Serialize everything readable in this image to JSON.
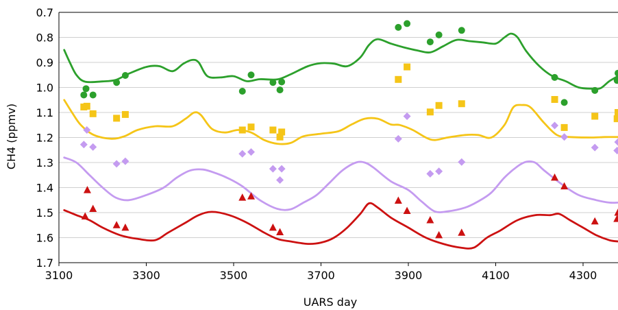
{
  "chart_data": {
    "type": "scatter",
    "xlabel": "UARS day",
    "ylabel": "CH4 (ppmv)",
    "xlim": [
      3100,
      4380
    ],
    "ylim": [
      0.7,
      1.7
    ],
    "y_inverted": true,
    "x_ticks": [
      3100,
      3300,
      3500,
      3700,
      3900,
      4100,
      4300
    ],
    "y_ticks": [
      "0.7",
      "0.8",
      "0.9",
      "1.0",
      "1.1",
      "1.2",
      "1.3",
      "1.4",
      "1.5",
      "1.6",
      "1.7"
    ],
    "grid": "horizontal",
    "series": [
      {
        "color": "#2ca02c",
        "marker": "circle",
        "points": [
          [
            3157,
            1.03
          ],
          [
            3162,
            1.005
          ],
          [
            3178,
            1.03
          ],
          [
            3232,
            0.98
          ],
          [
            3252,
            0.952
          ],
          [
            3520,
            1.015
          ],
          [
            3540,
            0.95
          ],
          [
            3590,
            0.98
          ],
          [
            3606,
            1.01
          ],
          [
            3610,
            0.978
          ],
          [
            3877,
            0.76
          ],
          [
            3897,
            0.745
          ],
          [
            3950,
            0.818
          ],
          [
            3970,
            0.79
          ],
          [
            4022,
            0.772
          ],
          [
            4235,
            0.96
          ],
          [
            4257,
            1.06
          ],
          [
            4327,
            1.012
          ],
          [
            4378,
            0.972
          ],
          [
            4380,
            0.943
          ]
        ],
        "line": [
          [
            3112,
            0.85
          ],
          [
            3125,
            0.9
          ],
          [
            3140,
            0.95
          ],
          [
            3160,
            0.977
          ],
          [
            3200,
            0.976
          ],
          [
            3230,
            0.97
          ],
          [
            3260,
            0.945
          ],
          [
            3300,
            0.918
          ],
          [
            3330,
            0.915
          ],
          [
            3360,
            0.935
          ],
          [
            3385,
            0.905
          ],
          [
            3405,
            0.89
          ],
          [
            3420,
            0.9
          ],
          [
            3440,
            0.955
          ],
          [
            3470,
            0.96
          ],
          [
            3500,
            0.955
          ],
          [
            3530,
            0.975
          ],
          [
            3560,
            0.967
          ],
          [
            3600,
            0.968
          ],
          [
            3630,
            0.948
          ],
          [
            3670,
            0.915
          ],
          [
            3700,
            0.903
          ],
          [
            3730,
            0.905
          ],
          [
            3760,
            0.915
          ],
          [
            3790,
            0.88
          ],
          [
            3810,
            0.83
          ],
          [
            3830,
            0.807
          ],
          [
            3860,
            0.825
          ],
          [
            3890,
            0.84
          ],
          [
            3920,
            0.852
          ],
          [
            3950,
            0.86
          ],
          [
            3980,
            0.835
          ],
          [
            4010,
            0.81
          ],
          [
            4040,
            0.815
          ],
          [
            4070,
            0.82
          ],
          [
            4100,
            0.825
          ],
          [
            4120,
            0.8
          ],
          [
            4135,
            0.785
          ],
          [
            4150,
            0.8
          ],
          [
            4170,
            0.855
          ],
          [
            4200,
            0.915
          ],
          [
            4230,
            0.955
          ],
          [
            4260,
            0.975
          ],
          [
            4290,
            1.0
          ],
          [
            4320,
            1.005
          ],
          [
            4340,
            1.003
          ],
          [
            4360,
            0.975
          ],
          [
            4380,
            0.955
          ]
        ]
      },
      {
        "color": "#f5c518",
        "marker": "square",
        "points": [
          [
            3157,
            1.078
          ],
          [
            3164,
            1.075
          ],
          [
            3178,
            1.105
          ],
          [
            3232,
            1.123
          ],
          [
            3252,
            1.108
          ],
          [
            3520,
            1.17
          ],
          [
            3540,
            1.158
          ],
          [
            3590,
            1.17
          ],
          [
            3606,
            1.198
          ],
          [
            3610,
            1.178
          ],
          [
            3877,
            0.968
          ],
          [
            3897,
            0.918
          ],
          [
            3950,
            1.098
          ],
          [
            3970,
            1.072
          ],
          [
            4022,
            1.065
          ],
          [
            4235,
            1.048
          ],
          [
            4257,
            1.16
          ],
          [
            4327,
            1.115
          ],
          [
            4378,
            1.125
          ],
          [
            4380,
            1.1
          ]
        ],
        "line": [
          [
            3112,
            1.05
          ],
          [
            3130,
            1.1
          ],
          [
            3150,
            1.15
          ],
          [
            3180,
            1.19
          ],
          [
            3220,
            1.205
          ],
          [
            3250,
            1.195
          ],
          [
            3280,
            1.17
          ],
          [
            3320,
            1.155
          ],
          [
            3360,
            1.155
          ],
          [
            3390,
            1.125
          ],
          [
            3410,
            1.1
          ],
          [
            3425,
            1.11
          ],
          [
            3450,
            1.165
          ],
          [
            3480,
            1.18
          ],
          [
            3510,
            1.17
          ],
          [
            3540,
            1.18
          ],
          [
            3570,
            1.21
          ],
          [
            3600,
            1.225
          ],
          [
            3630,
            1.222
          ],
          [
            3660,
            1.195
          ],
          [
            3700,
            1.185
          ],
          [
            3740,
            1.175
          ],
          [
            3770,
            1.148
          ],
          [
            3800,
            1.125
          ],
          [
            3830,
            1.125
          ],
          [
            3860,
            1.148
          ],
          [
            3880,
            1.15
          ],
          [
            3910,
            1.17
          ],
          [
            3940,
            1.2
          ],
          [
            3960,
            1.21
          ],
          [
            3990,
            1.2
          ],
          [
            4030,
            1.19
          ],
          [
            4060,
            1.19
          ],
          [
            4090,
            1.2
          ],
          [
            4120,
            1.15
          ],
          [
            4140,
            1.08
          ],
          [
            4160,
            1.07
          ],
          [
            4180,
            1.08
          ],
          [
            4210,
            1.14
          ],
          [
            4240,
            1.19
          ],
          [
            4270,
            1.198
          ],
          [
            4320,
            1.2
          ],
          [
            4350,
            1.198
          ],
          [
            4380,
            1.198
          ]
        ]
      },
      {
        "color": "#c49bf0",
        "marker": "diamond",
        "points": [
          [
            3157,
            1.228
          ],
          [
            3164,
            1.17
          ],
          [
            3178,
            1.238
          ],
          [
            3232,
            1.305
          ],
          [
            3252,
            1.295
          ],
          [
            3520,
            1.265
          ],
          [
            3540,
            1.258
          ],
          [
            3590,
            1.325
          ],
          [
            3606,
            1.37
          ],
          [
            3610,
            1.325
          ],
          [
            3877,
            1.205
          ],
          [
            3897,
            1.115
          ],
          [
            3950,
            1.345
          ],
          [
            3970,
            1.335
          ],
          [
            4022,
            1.298
          ],
          [
            4235,
            1.152
          ],
          [
            4257,
            1.198
          ],
          [
            4327,
            1.24
          ],
          [
            4378,
            1.252
          ],
          [
            4380,
            1.218
          ]
        ],
        "line": [
          [
            3112,
            1.28
          ],
          [
            3140,
            1.3
          ],
          [
            3170,
            1.35
          ],
          [
            3200,
            1.4
          ],
          [
            3230,
            1.44
          ],
          [
            3260,
            1.45
          ],
          [
            3300,
            1.43
          ],
          [
            3340,
            1.4
          ],
          [
            3370,
            1.36
          ],
          [
            3400,
            1.332
          ],
          [
            3430,
            1.328
          ],
          [
            3460,
            1.343
          ],
          [
            3490,
            1.365
          ],
          [
            3520,
            1.395
          ],
          [
            3560,
            1.45
          ],
          [
            3600,
            1.485
          ],
          [
            3630,
            1.487
          ],
          [
            3660,
            1.46
          ],
          [
            3690,
            1.43
          ],
          [
            3720,
            1.38
          ],
          [
            3750,
            1.33
          ],
          [
            3780,
            1.3
          ],
          [
            3800,
            1.3
          ],
          [
            3820,
            1.32
          ],
          [
            3860,
            1.375
          ],
          [
            3900,
            1.41
          ],
          [
            3930,
            1.455
          ],
          [
            3960,
            1.495
          ],
          [
            3990,
            1.495
          ],
          [
            4030,
            1.48
          ],
          [
            4060,
            1.455
          ],
          [
            4090,
            1.42
          ],
          [
            4120,
            1.36
          ],
          [
            4150,
            1.315
          ],
          [
            4170,
            1.297
          ],
          [
            4190,
            1.3
          ],
          [
            4210,
            1.33
          ],
          [
            4250,
            1.385
          ],
          [
            4290,
            1.43
          ],
          [
            4330,
            1.45
          ],
          [
            4360,
            1.46
          ],
          [
            4380,
            1.46
          ]
        ]
      },
      {
        "color": "#cc1111",
        "marker": "triangle",
        "points": [
          [
            3160,
            1.515
          ],
          [
            3165,
            1.41
          ],
          [
            3178,
            1.485
          ],
          [
            3232,
            1.55
          ],
          [
            3252,
            1.56
          ],
          [
            3520,
            1.44
          ],
          [
            3540,
            1.435
          ],
          [
            3590,
            1.56
          ],
          [
            3606,
            1.578
          ],
          [
            3877,
            1.452
          ],
          [
            3897,
            1.493
          ],
          [
            3950,
            1.53
          ],
          [
            3970,
            1.59
          ],
          [
            4022,
            1.58
          ],
          [
            4235,
            1.36
          ],
          [
            4257,
            1.395
          ],
          [
            4327,
            1.535
          ],
          [
            4378,
            1.525
          ],
          [
            4380,
            1.5
          ]
        ],
        "line": [
          [
            3112,
            1.49
          ],
          [
            3140,
            1.51
          ],
          [
            3170,
            1.53
          ],
          [
            3200,
            1.56
          ],
          [
            3240,
            1.59
          ],
          [
            3280,
            1.605
          ],
          [
            3320,
            1.61
          ],
          [
            3350,
            1.58
          ],
          [
            3390,
            1.54
          ],
          [
            3420,
            1.51
          ],
          [
            3450,
            1.497
          ],
          [
            3490,
            1.51
          ],
          [
            3530,
            1.54
          ],
          [
            3570,
            1.58
          ],
          [
            3600,
            1.605
          ],
          [
            3630,
            1.615
          ],
          [
            3670,
            1.625
          ],
          [
            3700,
            1.62
          ],
          [
            3730,
            1.6
          ],
          [
            3760,
            1.56
          ],
          [
            3790,
            1.505
          ],
          [
            3810,
            1.463
          ],
          [
            3830,
            1.48
          ],
          [
            3860,
            1.52
          ],
          [
            3900,
            1.56
          ],
          [
            3940,
            1.6
          ],
          [
            3980,
            1.625
          ],
          [
            4020,
            1.64
          ],
          [
            4050,
            1.64
          ],
          [
            4080,
            1.6
          ],
          [
            4110,
            1.572
          ],
          [
            4150,
            1.53
          ],
          [
            4190,
            1.51
          ],
          [
            4225,
            1.51
          ],
          [
            4245,
            1.505
          ],
          [
            4270,
            1.53
          ],
          [
            4300,
            1.56
          ],
          [
            4330,
            1.59
          ],
          [
            4360,
            1.61
          ],
          [
            4380,
            1.615
          ]
        ]
      }
    ]
  }
}
